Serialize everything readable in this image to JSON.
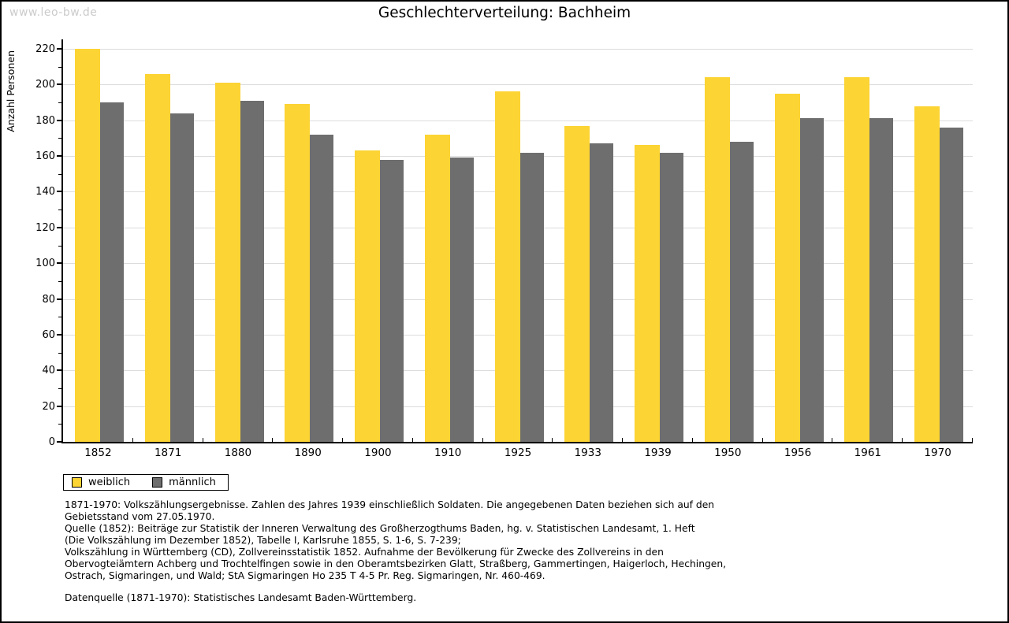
{
  "watermark": "www.leo-bw.de",
  "header": {
    "title": "Geschlechterverteilung: Bachheim"
  },
  "chart_data": {
    "type": "bar",
    "title": "Geschlechterverteilung: Bachheim",
    "xlabel": "",
    "ylabel": "Anzahl Personen",
    "ylim": [
      0,
      220
    ],
    "ytick_step": 20,
    "y_minor_step": 10,
    "grid": true,
    "legend_position": "bottom-left",
    "categories": [
      "1852",
      "1871",
      "1880",
      "1890",
      "1900",
      "1910",
      "1925",
      "1933",
      "1939",
      "1950",
      "1956",
      "1961",
      "1970"
    ],
    "series": [
      {
        "name": "weiblich",
        "color": "#FCD433",
        "values": [
          220,
          206,
          201,
          189,
          163,
          172,
          196,
          177,
          166,
          204,
          195,
          204,
          188
        ]
      },
      {
        "name": "männlich",
        "color": "#6E6E6E",
        "values": [
          190,
          184,
          191,
          172,
          158,
          159,
          162,
          167,
          162,
          168,
          181,
          181,
          176
        ]
      }
    ]
  },
  "footnotes": {
    "lines": [
      "1871-1970: Volkszählungsergebnisse. Zahlen des Jahres 1939 einschließlich Soldaten. Die angegebenen Daten beziehen sich auf den",
      "Gebietsstand vom 27.05.1970.",
      "Quelle (1852): Beiträge zur Statistik der Inneren Verwaltung des Großherzogthums Baden, hg. v. Statistischen Landesamt, 1. Heft",
      "(Die Volkszählung im Dezember 1852), Tabelle I, Karlsruhe 1855, S. 1-6, S. 7-239;",
      "Volkszählung in Württemberg (CD), Zollvereinsstatistik 1852. Aufnahme der Bevölkerung für Zwecke des Zollvereins in den",
      "Obervogteiämtern Achberg und Trochtelfingen sowie in den Oberamtsbezirken Glatt, Straßberg, Gammertingen, Haigerloch, Hechingen,",
      "Ostrach, Sigmaringen, und Wald; StA Sigmaringen Ho 235 T 4-5 Pr. Reg. Sigmaringen, Nr. 460-469."
    ],
    "datasource": "Datenquelle (1871-1970): Statistisches Landesamt Baden-Württemberg."
  },
  "colors": {
    "weiblich": "#FCD433",
    "maennlich": "#6E6E6E",
    "gridline": "#DCDCDC",
    "axis": "#000000",
    "watermark": "#CBCBCB",
    "background": "#FFFFFF"
  }
}
